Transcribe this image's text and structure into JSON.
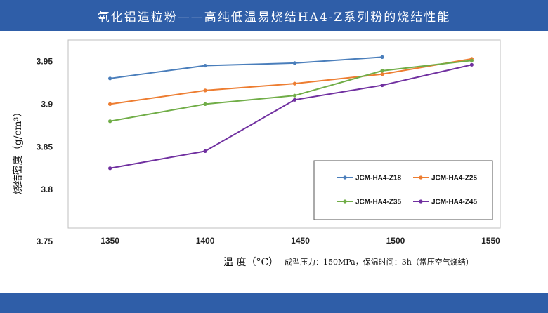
{
  "header": {
    "title": "氧化铝造粒粉——高纯低温易烧结HA4-Z系列粉的烧结性能"
  },
  "chart_data": {
    "type": "line",
    "ylabel": "烧结密度（g/cm³）",
    "xlabel": "温 度（°C）",
    "note": "成型压力：150MPa，保温时间：3h（常压空气烧结）",
    "x_ticks": [
      "1350",
      "1400",
      "1450",
      "1500",
      "1550"
    ],
    "y_ticks": [
      "3.75",
      "3.8",
      "3.85",
      "3.9",
      "3.95"
    ],
    "xlim": [
      1328,
      1555
    ],
    "ylim": [
      3.755,
      3.975
    ],
    "legend_position": "lower-right",
    "series": [
      {
        "name": "JCM-HA4-Z18",
        "color": "#4a7ebb",
        "x": [
          1350,
          1400,
          1447,
          1493
        ],
        "y": [
          3.93,
          3.945,
          3.948,
          3.955
        ]
      },
      {
        "name": "JCM-HA4-Z25",
        "color": "#ed7d31",
        "x": [
          1350,
          1400,
          1447,
          1493,
          1540
        ],
        "y": [
          3.9,
          3.916,
          3.924,
          3.935,
          3.953
        ]
      },
      {
        "name": "JCM-HA4-Z35",
        "color": "#70ad47",
        "x": [
          1350,
          1400,
          1447,
          1493,
          1540
        ],
        "y": [
          3.88,
          3.9,
          3.91,
          3.939,
          3.951
        ]
      },
      {
        "name": "JCM-HA4-Z45",
        "color": "#7030a0",
        "x": [
          1350,
          1400,
          1447,
          1493,
          1540
        ],
        "y": [
          3.825,
          3.845,
          3.905,
          3.922,
          3.946
        ]
      }
    ]
  }
}
